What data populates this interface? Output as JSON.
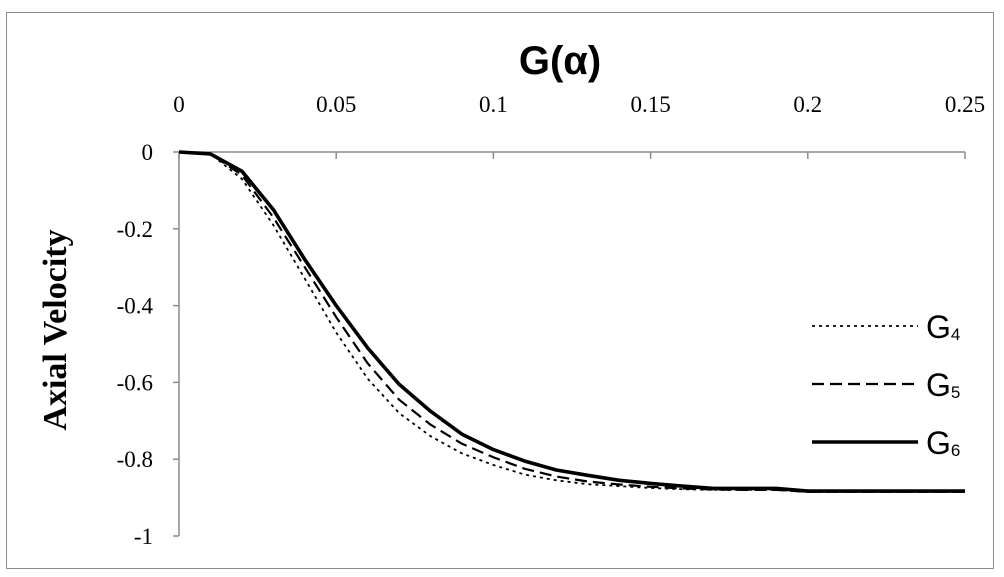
{
  "chart_data": {
    "type": "line",
    "xlabel": "G(α)",
    "ylabel": "Axial Velocity",
    "xlim": [
      0,
      0.25
    ],
    "ylim": [
      -1,
      0
    ],
    "x_axis_position": "top",
    "grid": false,
    "legend_position": "right",
    "x_ticks": [
      "0",
      "0.05",
      "0.1",
      "0.15",
      "0.2",
      "0.25"
    ],
    "y_ticks": [
      "0",
      "-0.2",
      "-0.4",
      "-0.6",
      "-0.8",
      "-1"
    ],
    "series": [
      {
        "name": "G",
        "subscript": "4",
        "style": "dotted",
        "x": [
          0,
          0.01,
          0.02,
          0.03,
          0.04,
          0.05,
          0.06,
          0.07,
          0.08,
          0.09,
          0.1,
          0.11,
          0.12,
          0.13,
          0.14,
          0.15,
          0.16,
          0.17,
          0.18,
          0.19,
          0.2,
          0.25
        ],
        "y": [
          0,
          -0.005,
          -0.07,
          -0.19,
          -0.33,
          -0.47,
          -0.59,
          -0.68,
          -0.74,
          -0.785,
          -0.815,
          -0.84,
          -0.855,
          -0.865,
          -0.87,
          -0.875,
          -0.878,
          -0.88,
          -0.88,
          -0.88,
          -0.885,
          -0.885
        ]
      },
      {
        "name": "G",
        "subscript": "5",
        "style": "dashed",
        "x": [
          0,
          0.01,
          0.02,
          0.03,
          0.04,
          0.05,
          0.06,
          0.07,
          0.08,
          0.09,
          0.1,
          0.11,
          0.12,
          0.13,
          0.14,
          0.15,
          0.16,
          0.17,
          0.18,
          0.19,
          0.2,
          0.25
        ],
        "y": [
          0,
          -0.005,
          -0.06,
          -0.17,
          -0.3,
          -0.43,
          -0.55,
          -0.645,
          -0.71,
          -0.76,
          -0.795,
          -0.825,
          -0.845,
          -0.858,
          -0.866,
          -0.872,
          -0.876,
          -0.879,
          -0.88,
          -0.88,
          -0.885,
          -0.885
        ]
      },
      {
        "name": "G",
        "subscript": "6",
        "style": "solid",
        "x": [
          0,
          0.01,
          0.02,
          0.03,
          0.04,
          0.05,
          0.06,
          0.07,
          0.08,
          0.09,
          0.1,
          0.11,
          0.12,
          0.13,
          0.14,
          0.15,
          0.16,
          0.17,
          0.18,
          0.19,
          0.2,
          0.25
        ],
        "y": [
          0,
          -0.005,
          -0.05,
          -0.15,
          -0.28,
          -0.4,
          -0.51,
          -0.605,
          -0.675,
          -0.735,
          -0.775,
          -0.805,
          -0.828,
          -0.842,
          -0.855,
          -0.863,
          -0.87,
          -0.876,
          -0.876,
          -0.876,
          -0.883,
          -0.883
        ]
      }
    ]
  }
}
